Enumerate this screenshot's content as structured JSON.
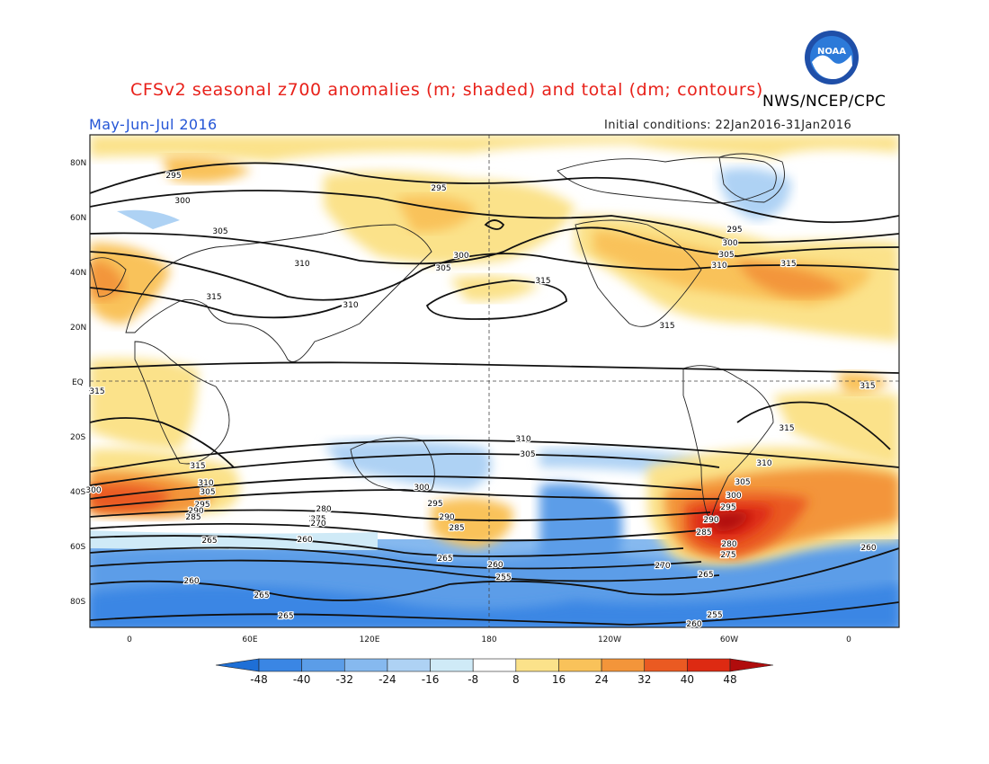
{
  "header": {
    "title": "CFSv2 seasonal z700 anomalies (m; shaded) and total (dm; contours)",
    "agency": "NWS/NCEP/CPC",
    "season": "May-Jun-Jul 2016",
    "initial_conditions": "Initial conditions: 22Jan2016-31Jan2016",
    "logo_text": "NOAA"
  },
  "axes": {
    "lat_labels": [
      "80N",
      "60N",
      "40N",
      "20N",
      "EQ",
      "20S",
      "40S",
      "60S",
      "80S"
    ],
    "lon_labels": [
      "0",
      "60E",
      "120E",
      "180",
      "120W",
      "60W",
      "0"
    ]
  },
  "colorbar": {
    "ticks": [
      "-48",
      "-40",
      "-32",
      "-24",
      "-16",
      "-8",
      "8",
      "16",
      "24",
      "32",
      "40",
      "48"
    ],
    "colors": [
      "#1e6fd6",
      "#3a86e4",
      "#5b9de8",
      "#86b9ef",
      "#aed2f4",
      "#cfeaf7",
      "#ffffff",
      "#fbe28a",
      "#f9c25a",
      "#f3953a",
      "#ea5a22",
      "#dd2a12",
      "#b00c0c"
    ]
  },
  "contour_labels": [
    "295",
    "295",
    "300",
    "305",
    "310",
    "315",
    "310",
    "305",
    "300",
    "315",
    "300",
    "305",
    "310",
    "315",
    "295",
    "315",
    "315",
    "315",
    "315",
    "310",
    "305",
    "310",
    "315",
    "310",
    "305",
    "300",
    "295",
    "290",
    "285",
    "280",
    "275",
    "270",
    "265",
    "260",
    "300",
    "295",
    "290",
    "285",
    "280",
    "270",
    "265",
    "260",
    "265",
    "260",
    "255",
    "265",
    "305",
    "300",
    "295",
    "290",
    "285",
    "280",
    "275",
    "270",
    "265",
    "255",
    "260",
    "260"
  ]
}
